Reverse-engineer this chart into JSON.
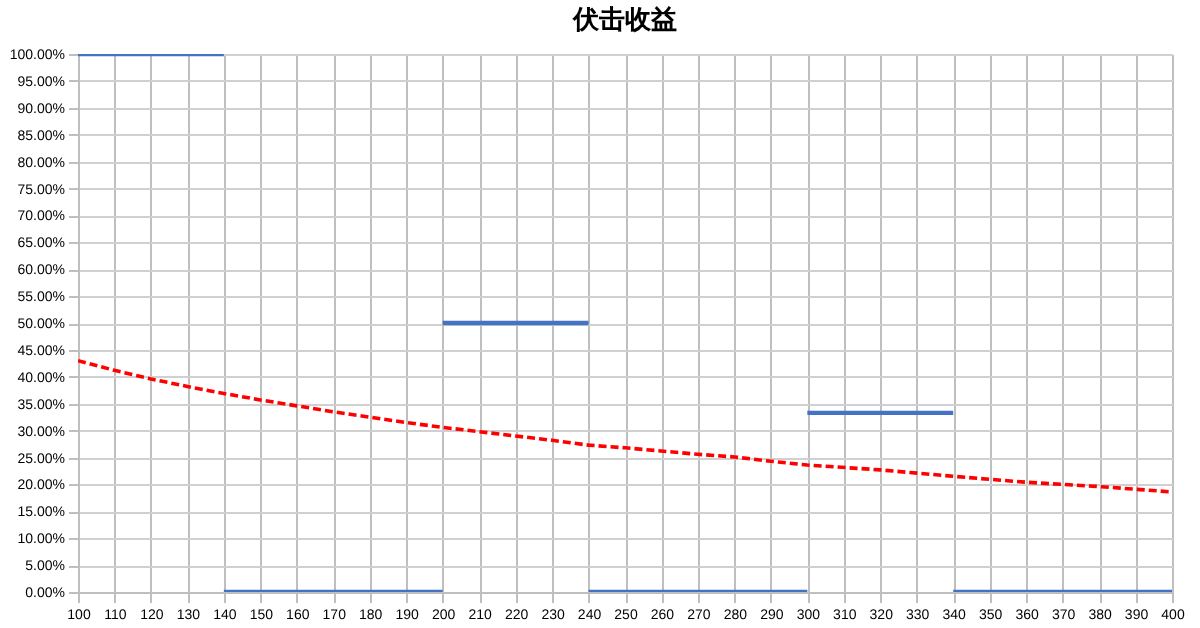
{
  "chart_data": {
    "type": "line",
    "title": "伏击收益",
    "xlim": [
      100,
      400
    ],
    "xticks": [
      100,
      110,
      120,
      130,
      140,
      150,
      160,
      170,
      180,
      190,
      200,
      210,
      220,
      230,
      240,
      250,
      260,
      270,
      280,
      290,
      300,
      310,
      320,
      330,
      340,
      350,
      360,
      370,
      380,
      390,
      400
    ],
    "ylim": [
      0,
      100
    ],
    "yticks": [
      {
        "value": 0,
        "label": "0.00%"
      },
      {
        "value": 5,
        "label": "5.00%"
      },
      {
        "value": 10,
        "label": "10.00%"
      },
      {
        "value": 15,
        "label": "15.00%"
      },
      {
        "value": 20,
        "label": "20.00%"
      },
      {
        "value": 25,
        "label": "25.00%"
      },
      {
        "value": 30,
        "label": "30.00%"
      },
      {
        "value": 35,
        "label": "35.00%"
      },
      {
        "value": 40,
        "label": "40.00%"
      },
      {
        "value": 45,
        "label": "45.00%"
      },
      {
        "value": 50,
        "label": "50.00%"
      },
      {
        "value": 55,
        "label": "55.00%"
      },
      {
        "value": 60,
        "label": "60.00%"
      },
      {
        "value": 65,
        "label": "65.00%"
      },
      {
        "value": 70,
        "label": "70.00%"
      },
      {
        "value": 75,
        "label": "75.00%"
      },
      {
        "value": 80,
        "label": "80.00%"
      },
      {
        "value": 85,
        "label": "85.00%"
      },
      {
        "value": 90,
        "label": "90.00%"
      },
      {
        "value": 95,
        "label": "95.00%"
      },
      {
        "value": 100,
        "label": "100.00%"
      }
    ],
    "grid": true,
    "marker": "none",
    "series": [
      {
        "color": "#4472c4",
        "line_style": "solid",
        "x": [
          100,
          140
        ],
        "values": [
          100,
          100
        ]
      },
      {
        "color": "#4472c4",
        "line_style": "solid",
        "x": [
          140,
          200
        ],
        "values": [
          0,
          0
        ]
      },
      {
        "color": "#4472c4",
        "line_style": "solid",
        "x": [
          200,
          240
        ],
        "values": [
          50,
          50
        ]
      },
      {
        "color": "#4472c4",
        "line_style": "solid",
        "x": [
          240,
          300
        ],
        "values": [
          0,
          0
        ]
      },
      {
        "color": "#4472c4",
        "line_style": "solid",
        "x": [
          300,
          340
        ],
        "values": [
          33.3,
          33.3
        ]
      },
      {
        "color": "#4472c4",
        "line_style": "solid",
        "x": [
          340,
          400
        ],
        "values": [
          0,
          0
        ]
      },
      {
        "color": "#ff0000",
        "line_style": "dashed",
        "x": [
          100,
          110,
          120,
          130,
          140,
          150,
          160,
          170,
          180,
          190,
          200,
          210,
          220,
          230,
          240,
          250,
          270,
          280,
          290,
          300,
          320,
          340,
          360,
          380,
          400
        ],
        "values": [
          43,
          41.2,
          39.6,
          38.2,
          36.9,
          35.7,
          34.6,
          33.5,
          32.5,
          31.5,
          30.6,
          29.8,
          29,
          28.2,
          27.3,
          26.8,
          25.6,
          25.1,
          24.3,
          23.6,
          22.7,
          21.5,
          20.4,
          19.6,
          18.6
        ]
      }
    ]
  }
}
